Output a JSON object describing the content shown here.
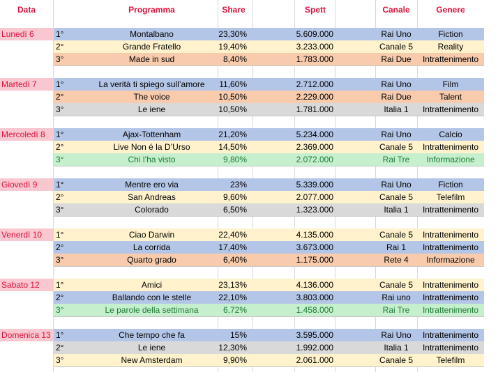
{
  "header": {
    "data": "Data",
    "programma": "Programma",
    "share": "Share",
    "spett": "Spett",
    "canale": "Canale",
    "genere": "Genere"
  },
  "colors": {
    "blue": "#b4c6e7",
    "yellow": "#fff2cc",
    "orange": "#f8cbad",
    "gray": "#d9d9d9",
    "green": "#c6efce",
    "header_red": "#e0103a",
    "day_pink": "#f8c7d0",
    "green_text": "#1e7b34"
  },
  "days": [
    {
      "day": "Lunedì 6",
      "rows": [
        {
          "pos": "1°",
          "programma": "Montalbano",
          "share": "23,30%",
          "spett": "5.609.000",
          "canale": "Rai Uno",
          "genere": "Fiction",
          "fill": "blue"
        },
        {
          "pos": "2°",
          "programma": "Grande Fratello",
          "share": "19,40%",
          "spett": "3.233.000",
          "canale": "Canale 5",
          "genere": "Reality",
          "fill": "yellow"
        },
        {
          "pos": "3°",
          "programma": "Made in sud",
          "share": "8,40%",
          "spett": "1.783.000",
          "canale": "Rai Due",
          "genere": "Intrattenimento",
          "fill": "orange"
        }
      ]
    },
    {
      "day": "Martedì 7",
      "rows": [
        {
          "pos": "1°",
          "programma": "La verità ti spiego sull’amore",
          "share": "11,60%",
          "spett": "2.712.000",
          "canale": "Rai Uno",
          "genere": "Film",
          "fill": "blue"
        },
        {
          "pos": "2°",
          "programma": "The voice",
          "share": "10,50%",
          "spett": "2.229.000",
          "canale": "Rai Due",
          "genere": "Talent",
          "fill": "orange"
        },
        {
          "pos": "3°",
          "programma": "Le iene",
          "share": "10,50%",
          "spett": "1.781.000",
          "canale": "Italia 1",
          "genere": "Intrattenimento",
          "fill": "gray"
        }
      ]
    },
    {
      "day": "Mercoledì 8",
      "rows": [
        {
          "pos": "1°",
          "programma": "Ajax-Tottenham",
          "share": "21,20%",
          "spett": "5.234.000",
          "canale": "Rai Uno",
          "genere": "Calcio",
          "fill": "blue"
        },
        {
          "pos": "2°",
          "programma": "Live Non é la D’Urso",
          "share": "14,50%",
          "spett": "2.369.000",
          "canale": "Canale 5",
          "genere": "Intrattenimento",
          "fill": "yellow"
        },
        {
          "pos": "3°",
          "programma": "Chi l’ha visto",
          "share": "9,80%",
          "spett": "2.072.000",
          "canale": "Rai Tre",
          "genere": "Informazione",
          "fill": "green"
        }
      ]
    },
    {
      "day": "Giovedì 9",
      "rows": [
        {
          "pos": "1°",
          "programma": "Mentre ero via",
          "share": "23%",
          "spett": "5.339.000",
          "canale": "Rai Uno",
          "genere": "Fiction",
          "fill": "blue"
        },
        {
          "pos": "2°",
          "programma": "San Andreas",
          "share": "9,60%",
          "spett": "2.077.000",
          "canale": "Canale 5",
          "genere": "Telefilm",
          "fill": "yellow"
        },
        {
          "pos": "3°",
          "programma": "Colorado",
          "share": "6,50%",
          "spett": "1.323.000",
          "canale": "Italia 1",
          "genere": "Intrattenimento",
          "fill": "gray"
        }
      ]
    },
    {
      "day": "Venerdì 10",
      "rows": [
        {
          "pos": "1°",
          "programma": "Ciao Darwin",
          "share": "22,40%",
          "spett": "4.135.000",
          "canale": "Canale 5",
          "genere": "Intrattenimento",
          "fill": "yellow"
        },
        {
          "pos": "2°",
          "programma": "La corrida",
          "share": "17,40%",
          "spett": "3.673.000",
          "canale": "Rai 1",
          "genere": "Intrattenimento",
          "fill": "blue"
        },
        {
          "pos": "3°",
          "programma": "Quarto grado",
          "share": "6,40%",
          "spett": "1.175.000",
          "canale": "Rete 4",
          "genere": "Informazione",
          "fill": "orange"
        }
      ]
    },
    {
      "day": "Sabato 12",
      "rows": [
        {
          "pos": "1°",
          "programma": "Amici",
          "share": "23,13%",
          "spett": "4.136.000",
          "canale": "Canale 5",
          "genere": "Intrattenimento",
          "fill": "yellow"
        },
        {
          "pos": "2°",
          "programma": "Ballando con le stelle",
          "share": "22,10%",
          "spett": "3.803.000",
          "canale": "Rai uno",
          "genere": "Intrattenimento",
          "fill": "blue"
        },
        {
          "pos": "3°",
          "programma": "Le parole della settimana",
          "share": "6,72%",
          "spett": "1.458.000",
          "canale": "Rai Tre",
          "genere": "Intrattenimento",
          "fill": "green"
        }
      ]
    },
    {
      "day": "Domenica 13",
      "rows": [
        {
          "pos": "1°",
          "programma": "Che tempo che fa",
          "share": "15%",
          "spett": "3.595.000",
          "canale": "Rai Uno",
          "genere": "Intrattenimento",
          "fill": "blue"
        },
        {
          "pos": "2°",
          "programma": "Le iene",
          "share": "12,30%",
          "spett": "1.992.000",
          "canale": "Italia 1",
          "genere": "Intrattenimento",
          "fill": "gray"
        },
        {
          "pos": "3°",
          "programma": "New Amsterdam",
          "share": "9,90%",
          "spett": "2.061.000",
          "canale": "Canale 5",
          "genere": "Telefilm",
          "fill": "yellow"
        }
      ]
    }
  ]
}
